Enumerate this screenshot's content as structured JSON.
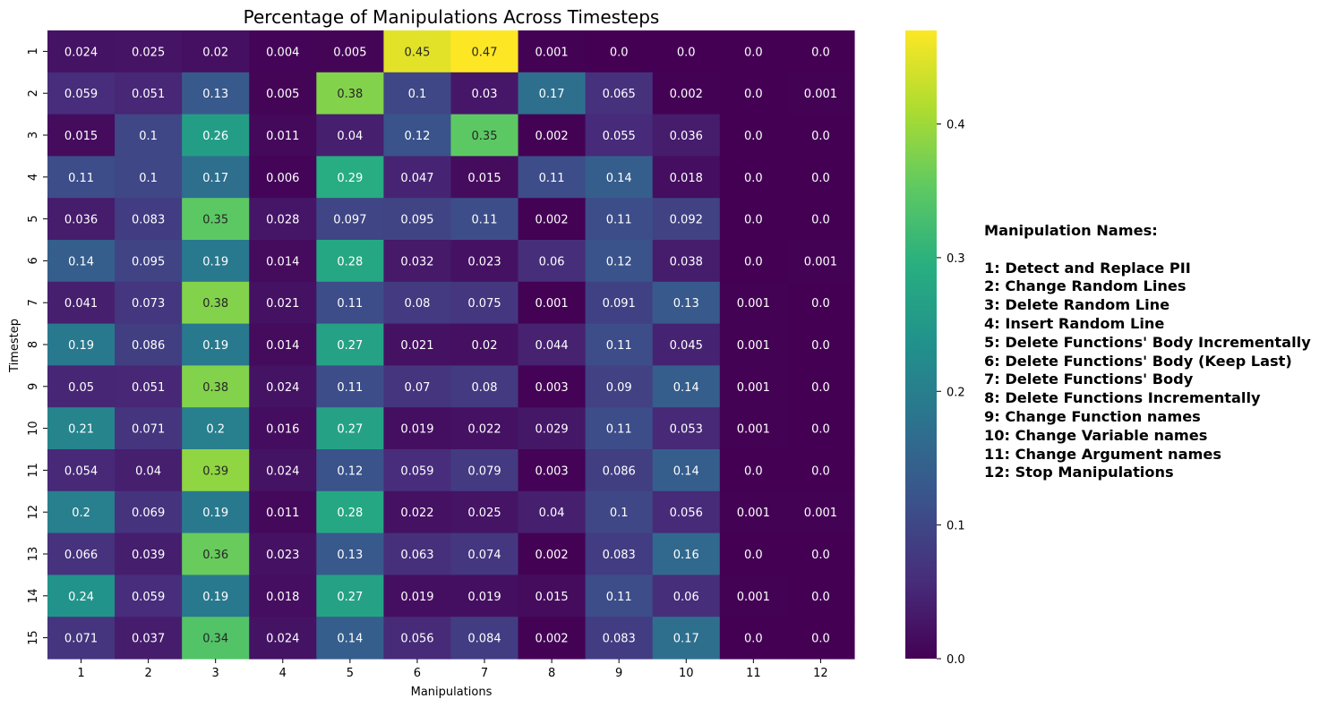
{
  "chart_data": {
    "type": "heatmap",
    "title": "Percentage of Manipulations Across Timesteps",
    "xlabel": "Manipulations",
    "ylabel": "Timestep",
    "x_categories": [
      "1",
      "2",
      "3",
      "4",
      "5",
      "6",
      "7",
      "8",
      "9",
      "10",
      "11",
      "12"
    ],
    "y_categories": [
      "1",
      "2",
      "3",
      "4",
      "5",
      "6",
      "7",
      "8",
      "9",
      "10",
      "11",
      "12",
      "13",
      "14",
      "15"
    ],
    "values": [
      [
        "0.024",
        "0.025",
        "0.02",
        "0.004",
        "0.005",
        "0.45",
        "0.47",
        "0.001",
        "0.0",
        "0.0",
        "0.0",
        "0.0"
      ],
      [
        "0.059",
        "0.051",
        "0.13",
        "0.005",
        "0.38",
        "0.1",
        "0.03",
        "0.17",
        "0.065",
        "0.002",
        "0.0",
        "0.001"
      ],
      [
        "0.015",
        "0.1",
        "0.26",
        "0.011",
        "0.04",
        "0.12",
        "0.35",
        "0.002",
        "0.055",
        "0.036",
        "0.0",
        "0.0"
      ],
      [
        "0.11",
        "0.1",
        "0.17",
        "0.006",
        "0.29",
        "0.047",
        "0.015",
        "0.11",
        "0.14",
        "0.018",
        "0.0",
        "0.0"
      ],
      [
        "0.036",
        "0.083",
        "0.35",
        "0.028",
        "0.097",
        "0.095",
        "0.11",
        "0.002",
        "0.11",
        "0.092",
        "0.0",
        "0.0"
      ],
      [
        "0.14",
        "0.095",
        "0.19",
        "0.014",
        "0.28",
        "0.032",
        "0.023",
        "0.06",
        "0.12",
        "0.038",
        "0.0",
        "0.001"
      ],
      [
        "0.041",
        "0.073",
        "0.38",
        "0.021",
        "0.11",
        "0.08",
        "0.075",
        "0.001",
        "0.091",
        "0.13",
        "0.001",
        "0.0"
      ],
      [
        "0.19",
        "0.086",
        "0.19",
        "0.014",
        "0.27",
        "0.021",
        "0.02",
        "0.044",
        "0.11",
        "0.045",
        "0.001",
        "0.0"
      ],
      [
        "0.05",
        "0.051",
        "0.38",
        "0.024",
        "0.11",
        "0.07",
        "0.08",
        "0.003",
        "0.09",
        "0.14",
        "0.001",
        "0.0"
      ],
      [
        "0.21",
        "0.071",
        "0.2",
        "0.016",
        "0.27",
        "0.019",
        "0.022",
        "0.029",
        "0.11",
        "0.053",
        "0.001",
        "0.0"
      ],
      [
        "0.054",
        "0.04",
        "0.39",
        "0.024",
        "0.12",
        "0.059",
        "0.079",
        "0.003",
        "0.086",
        "0.14",
        "0.0",
        "0.0"
      ],
      [
        "0.2",
        "0.069",
        "0.19",
        "0.011",
        "0.28",
        "0.022",
        "0.025",
        "0.04",
        "0.1",
        "0.056",
        "0.001",
        "0.001"
      ],
      [
        "0.066",
        "0.039",
        "0.36",
        "0.023",
        "0.13",
        "0.063",
        "0.074",
        "0.002",
        "0.083",
        "0.16",
        "0.0",
        "0.0"
      ],
      [
        "0.24",
        "0.059",
        "0.19",
        "0.018",
        "0.27",
        "0.019",
        "0.019",
        "0.015",
        "0.11",
        "0.06",
        "0.001",
        "0.0"
      ],
      [
        "0.071",
        "0.037",
        "0.34",
        "0.024",
        "0.14",
        "0.056",
        "0.084",
        "0.002",
        "0.083",
        "0.17",
        "0.0",
        "0.0"
      ]
    ],
    "colorbar": {
      "cmap": "viridis",
      "range": [
        0,
        0.47
      ],
      "ticks": [
        0.0,
        0.1,
        0.2,
        0.3,
        0.4
      ],
      "tick_labels": [
        "0.0",
        "0.1",
        "0.2",
        "0.3",
        "0.4"
      ]
    },
    "grid": false
  },
  "legend": {
    "title": "Manipulation Names:",
    "items": [
      "1: Detect and Replace PII",
      "2: Change Random Lines",
      "3: Delete Random Line",
      "4: Insert Random Line",
      "5: Delete Functions' Body Incrementally",
      "6: Delete Functions' Body (Keep Last)",
      "7: Delete Functions' Body",
      "8: Delete Functions Incrementally",
      "9: Change Function names",
      "10: Change Variable names",
      "11: Change Argument names",
      "12: Stop Manipulations"
    ]
  }
}
